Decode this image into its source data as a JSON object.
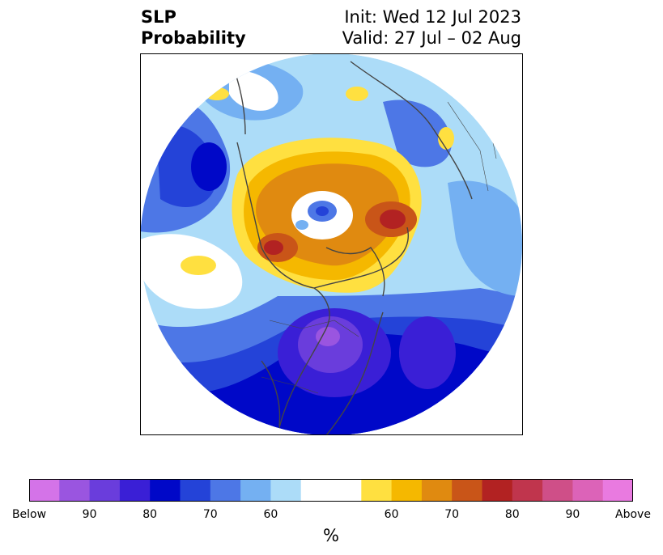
{
  "title": {
    "left_line1": "SLP",
    "left_line2": "Probability",
    "right_line1": "Init: Wed 12 Jul 2023",
    "right_line2": "Valid: 27 Jul – 02 Aug"
  },
  "colorbar": {
    "unit": "%",
    "colors": [
      "#d473e8",
      "#9a55e0",
      "#6a3ddc",
      "#3a1fd6",
      "#0008c8",
      "#2443d8",
      "#4d77e6",
      "#74b0f2",
      "#acdcf8",
      "#ffffff",
      "#ffffff",
      "#ffe040",
      "#f5b800",
      "#e08a10",
      "#c95518",
      "#b22222",
      "#c0354d",
      "#cf4f88",
      "#dc63b8",
      "#e97ae0"
    ],
    "labels": [
      "Below",
      "90",
      "80",
      "70",
      "60",
      "60",
      "70",
      "80",
      "90",
      "Above"
    ],
    "label_fractions": [
      0.0,
      0.1,
      0.2,
      0.3,
      0.4,
      0.6,
      0.7,
      0.8,
      0.9,
      1.0
    ]
  },
  "legend_semantics": {
    "below": [
      "Below",
      "90",
      "80",
      "70",
      "60"
    ],
    "above": [
      "60",
      "70",
      "80",
      "90",
      "Above"
    ]
  }
}
